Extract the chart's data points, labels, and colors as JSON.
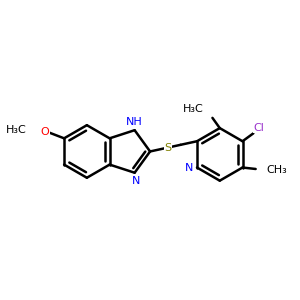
{
  "background": "#ffffff",
  "bond_color": "#000000",
  "bond_width": 1.8,
  "N_color": "#0000ff",
  "O_color": "#ff0000",
  "S_color": "#808000",
  "Cl_color": "#9932CC",
  "figsize": [
    3.0,
    3.0
  ],
  "dpi": 100,
  "xlim": [
    0,
    10
  ],
  "ylim": [
    2,
    8
  ]
}
